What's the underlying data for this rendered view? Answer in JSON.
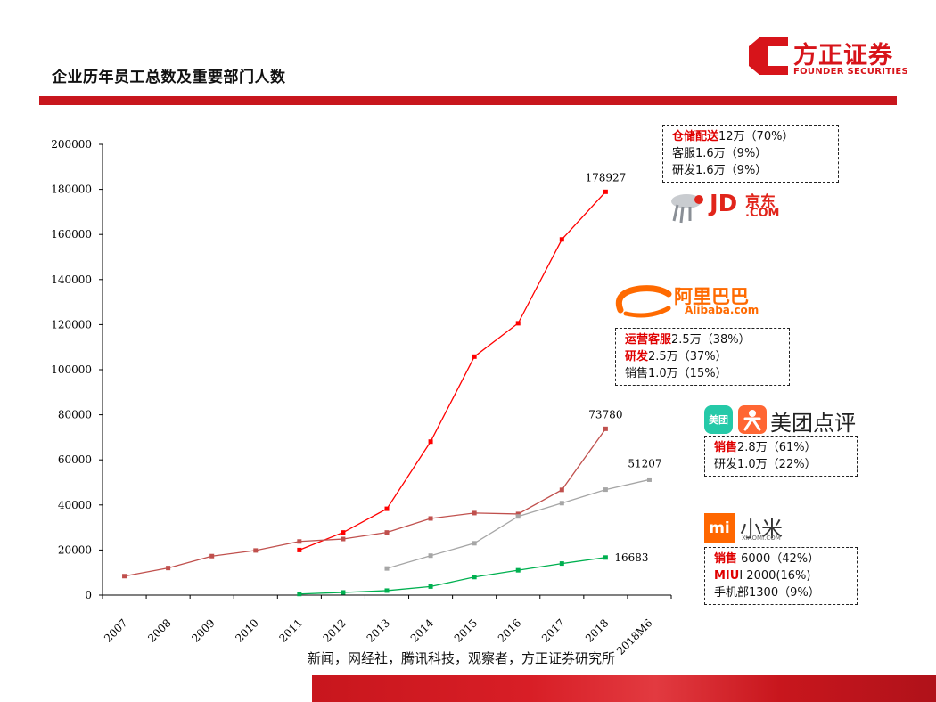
{
  "page": {
    "title": "企业历年员工总数及重要部门人数",
    "source": "新闻，网经社，腾讯科技，观察者，方正证券研究所"
  },
  "brand": {
    "cn": "方正证券",
    "en": "FOUNDER SECURITIES",
    "color": "#d7141a"
  },
  "logos": {
    "jd_mark": "JD",
    "jd_cn": "京东",
    "jd_com": ".COM",
    "alibaba_cn": "阿里巴巴",
    "alibaba_en": "Alibaba.com",
    "meituan_icon": "美团",
    "meituan_text": "美团点评",
    "xiaomi_icon": "mi",
    "xiaomi_text": "小米",
    "xiaomi_sub": "XIAOMI.COM"
  },
  "callouts": {
    "jd": [
      {
        "hl": "仓储配送",
        "rest": "12万（70%）"
      },
      {
        "hl": "",
        "rest": "客服1.6万（9%）"
      },
      {
        "hl": "",
        "rest": "研发1.6万（9%）"
      }
    ],
    "alibaba": [
      {
        "hl": "运营客服",
        "rest": "2.5万（38%）"
      },
      {
        "hl": "研发",
        "rest": "2.5万（37%）"
      },
      {
        "hl": "",
        "rest": "销售1.0万（15%）"
      }
    ],
    "meituan": [
      {
        "hl": "销售",
        "rest": "2.8万（61%）"
      },
      {
        "hl": "",
        "rest": "研发1.0万（22%）"
      }
    ],
    "xiaomi": [
      {
        "hl": "销售",
        "rest": " 6000（42%）"
      },
      {
        "hl": "MIU",
        "rest": "I 2000(16%)"
      },
      {
        "hl": "",
        "rest": "手机部1300（9%）"
      }
    ]
  },
  "chart_data": {
    "type": "line",
    "categories": [
      "2007",
      "2008",
      "2009",
      "2010",
      "2011",
      "2012",
      "2013",
      "2014",
      "2015",
      "2016",
      "2017",
      "2018",
      "2018M6"
    ],
    "ylim": [
      0,
      200000
    ],
    "yticks": [
      0,
      20000,
      40000,
      60000,
      80000,
      100000,
      120000,
      140000,
      160000,
      180000,
      200000
    ],
    "grid": false,
    "series": [
      {
        "color": "#ff0000",
        "values": [
          null,
          null,
          null,
          null,
          20000,
          27800,
          38300,
          68100,
          105800,
          120600,
          157800,
          178927,
          null
        ]
      },
      {
        "color": "#c0504d",
        "values": [
          8400,
          12000,
          17300,
          19800,
          23800,
          24900,
          27800,
          34000,
          36400,
          36000,
          46700,
          73780,
          null
        ]
      },
      {
        "color": "#a6a6a6",
        "values": [
          null,
          null,
          null,
          null,
          null,
          null,
          11800,
          17500,
          23000,
          34900,
          40800,
          46800,
          51207
        ]
      },
      {
        "color": "#00b050",
        "values": [
          null,
          null,
          null,
          null,
          500,
          1200,
          2000,
          3800,
          8000,
          11000,
          14000,
          16683,
          null
        ]
      }
    ],
    "data_labels": [
      {
        "series": 0,
        "index": 11,
        "text": "178927"
      },
      {
        "series": 1,
        "index": 11,
        "text": "73780"
      },
      {
        "series": 2,
        "index": 12,
        "text": "51207"
      },
      {
        "series": 3,
        "index": 11,
        "text": "16683"
      }
    ]
  }
}
